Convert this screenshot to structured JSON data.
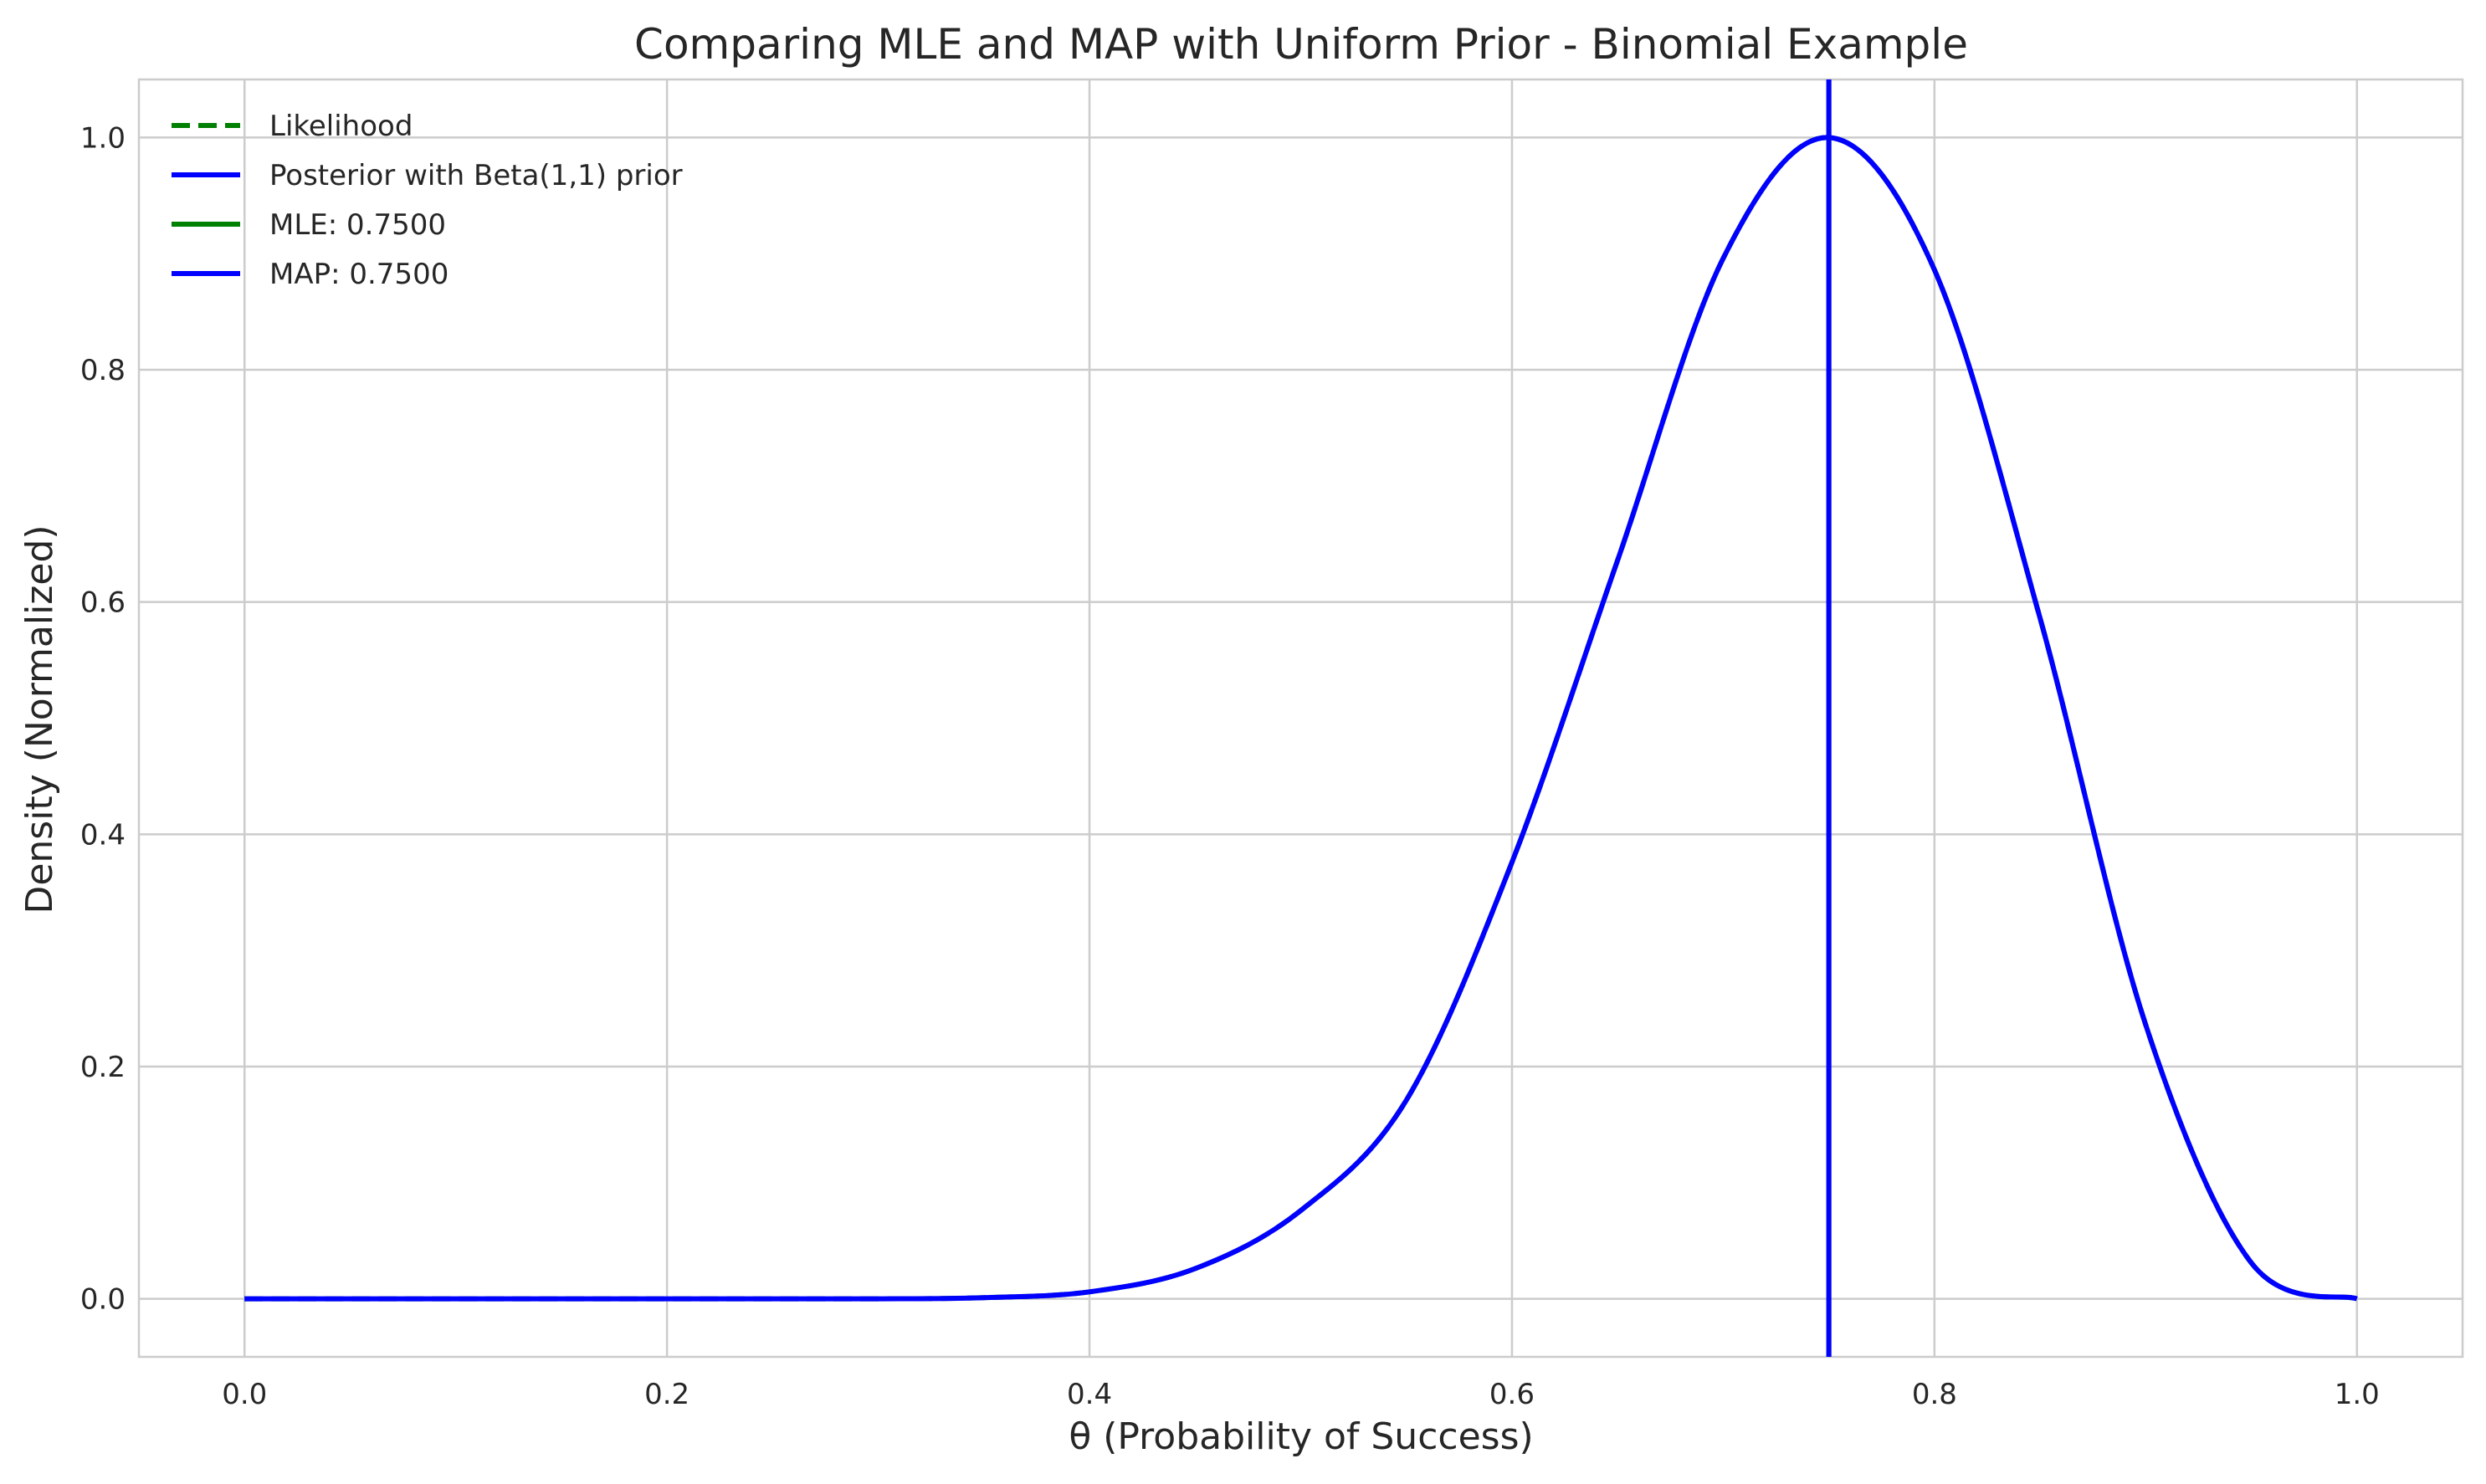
{
  "chart_data": {
    "type": "line",
    "title": "Comparing MLE and MAP with Uniform Prior - Binomial Example",
    "xlabel": "θ (Probability of Success)",
    "ylabel": "Density (Normalized)",
    "xlim": [
      -0.05,
      1.05
    ],
    "ylim": [
      -0.05,
      1.05
    ],
    "xticks": [
      0.0,
      0.2,
      0.4,
      0.6,
      0.8,
      1.0
    ],
    "xtick_labels": [
      "0.0",
      "0.2",
      "0.4",
      "0.6",
      "0.8",
      "1.0"
    ],
    "yticks": [
      0.0,
      0.2,
      0.4,
      0.6,
      0.8,
      1.0
    ],
    "ytick_labels": [
      "0.0",
      "0.2",
      "0.4",
      "0.6",
      "0.8",
      "1.0"
    ],
    "grid": true,
    "legend_position": "top-left",
    "series": [
      {
        "name": "Likelihood",
        "style": "dashed",
        "color": "#008000",
        "x": [
          0.0,
          0.05,
          0.1,
          0.15,
          0.2,
          0.25,
          0.3,
          0.35,
          0.4,
          0.45,
          0.5,
          0.55,
          0.6,
          0.65,
          0.7,
          0.75,
          0.8,
          0.85,
          0.9,
          0.95,
          1.0
        ],
        "values": [
          0.0,
          0.0,
          0.0,
          0.0,
          0.0,
          0.0,
          0.0,
          0.001,
          0.006,
          0.026,
          0.076,
          0.171,
          0.376,
          0.636,
          0.896,
          1.0,
          0.886,
          0.586,
          0.236,
          0.031,
          0.0
        ]
      },
      {
        "name": "Posterior with Beta(1,1) prior",
        "style": "solid",
        "color": "#0000ff",
        "x": [
          0.0,
          0.05,
          0.1,
          0.15,
          0.2,
          0.25,
          0.3,
          0.35,
          0.4,
          0.45,
          0.5,
          0.55,
          0.6,
          0.65,
          0.7,
          0.75,
          0.8,
          0.85,
          0.9,
          0.95,
          1.0
        ],
        "values": [
          0.0,
          0.0,
          0.0,
          0.0,
          0.0,
          0.0,
          0.0,
          0.001,
          0.006,
          0.026,
          0.076,
          0.171,
          0.376,
          0.636,
          0.896,
          1.0,
          0.886,
          0.586,
          0.236,
          0.031,
          0.0
        ]
      }
    ],
    "vlines": [
      {
        "name": "MLE: 0.7500",
        "x": 0.75,
        "color": "#008000"
      },
      {
        "name": "MAP: 0.7500",
        "x": 0.75,
        "color": "#0000ff"
      }
    ],
    "legend": [
      {
        "label": "Likelihood",
        "style": "dashed",
        "color": "#008000"
      },
      {
        "label": "Posterior with Beta(1,1) prior",
        "style": "solid",
        "color": "#0000ff"
      },
      {
        "label": "MLE: 0.7500",
        "style": "solid",
        "color": "#008000"
      },
      {
        "label": "MAP: 0.7500",
        "style": "solid",
        "color": "#0000ff"
      }
    ],
    "colors": {
      "grid": "#cccccc",
      "spine": "#cccccc",
      "text": "#262626"
    }
  }
}
